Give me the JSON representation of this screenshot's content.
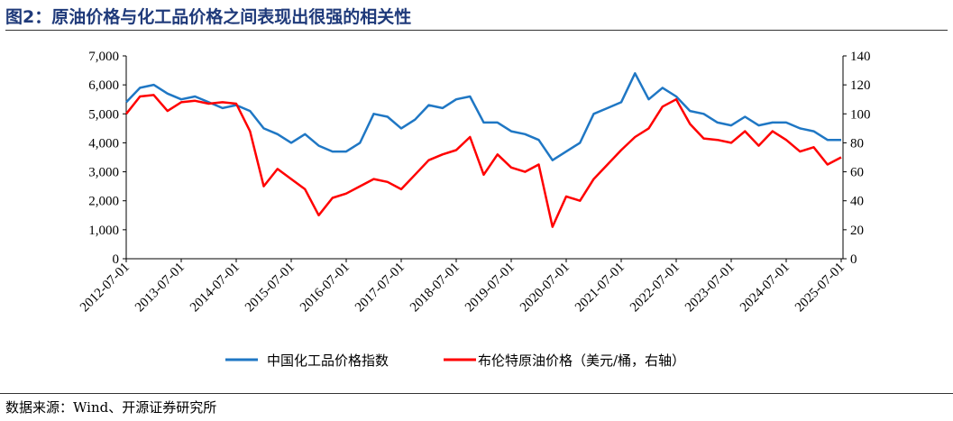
{
  "title": "图2：原油价格与化工品价格之间表现出很强的相关性",
  "source": "数据来源：Wind、开源证券研究所",
  "chart_data": {
    "type": "line",
    "title": "图2：原油价格与化工品价格之间表现出很强的相关性",
    "x_tick_labels": [
      "2012-07-01",
      "2013-07-01",
      "2014-07-01",
      "2015-07-01",
      "2016-07-01",
      "2017-07-01",
      "2018-07-01",
      "2019-07-01",
      "2020-07-01",
      "2021-07-01",
      "2022-07-01",
      "2023-07-01",
      "2024-07-01",
      "2025-07-01"
    ],
    "left_axis": {
      "ylim": [
        0,
        7000
      ],
      "ticks": [
        "0",
        "1,000",
        "2,000",
        "3,000",
        "4,000",
        "5,000",
        "6,000",
        "7,000"
      ]
    },
    "right_axis": {
      "ylim": [
        0,
        140
      ],
      "ticks": [
        "0",
        "20",
        "40",
        "60",
        "80",
        "100",
        "120",
        "140"
      ]
    },
    "x": [
      2012.5,
      2012.75,
      2013.0,
      2013.25,
      2013.5,
      2013.75,
      2014.0,
      2014.25,
      2014.5,
      2014.75,
      2015.0,
      2015.25,
      2015.5,
      2015.75,
      2016.0,
      2016.25,
      2016.5,
      2016.75,
      2017.0,
      2017.25,
      2017.5,
      2017.75,
      2018.0,
      2018.25,
      2018.5,
      2018.75,
      2019.0,
      2019.25,
      2019.5,
      2019.75,
      2020.0,
      2020.25,
      2020.5,
      2020.75,
      2021.0,
      2021.25,
      2021.5,
      2021.75,
      2022.0,
      2022.25,
      2022.5,
      2022.75,
      2023.0,
      2023.25,
      2023.5,
      2023.75,
      2024.0,
      2024.25,
      2024.5,
      2024.75,
      2025.0,
      2025.25,
      2025.5
    ],
    "series": [
      {
        "name": "中国化工品价格指数",
        "axis": "left",
        "color": "#1f77c4",
        "values": [
          5400,
          5900,
          6000,
          5700,
          5500,
          5600,
          5400,
          5200,
          5300,
          5100,
          4500,
          4300,
          4000,
          4300,
          3900,
          3700,
          3700,
          4000,
          5000,
          4900,
          4500,
          4800,
          5300,
          5200,
          5500,
          5600,
          4700,
          4700,
          4400,
          4300,
          4100,
          3400,
          3700,
          4000,
          5000,
          5200,
          5400,
          6400,
          5500,
          5900,
          5600,
          5100,
          5000,
          4700,
          4600,
          4900,
          4600,
          4700,
          4700,
          4500,
          4400,
          4100,
          4100
        ]
      },
      {
        "name": "布伦特原油价格（美元/桶，右轴）",
        "axis": "right",
        "color": "#ff0000",
        "values": [
          100,
          112,
          113,
          102,
          108,
          109,
          107,
          108,
          107,
          88,
          50,
          62,
          55,
          48,
          30,
          42,
          45,
          50,
          55,
          53,
          48,
          58,
          68,
          72,
          75,
          84,
          58,
          72,
          63,
          60,
          65,
          22,
          43,
          40,
          55,
          65,
          75,
          84,
          90,
          105,
          110,
          93,
          83,
          82,
          80,
          88,
          78,
          88,
          82,
          74,
          77,
          65,
          70
        ]
      }
    ]
  }
}
